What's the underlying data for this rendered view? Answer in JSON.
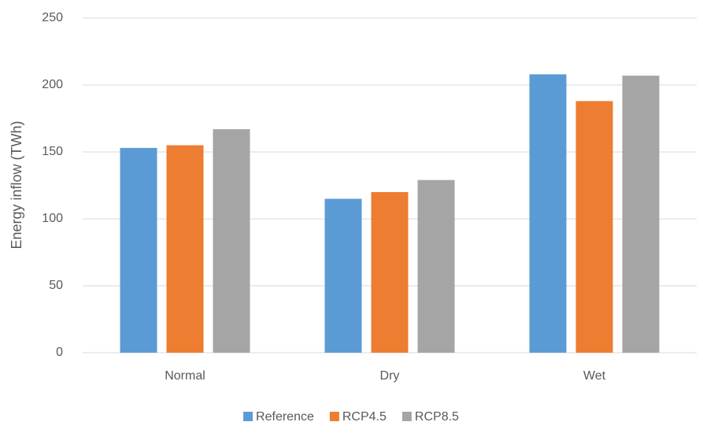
{
  "chart_data": {
    "type": "bar",
    "y_label": "Energy inflow (TWh)",
    "categories": [
      "Normal",
      "Dry",
      "Wet"
    ],
    "series": [
      {
        "name": "Reference",
        "color": "#5b9bd5",
        "values": [
          153,
          115,
          208
        ]
      },
      {
        "name": "RCP4.5",
        "color": "#ed7d31",
        "values": [
          155,
          120,
          188
        ]
      },
      {
        "name": "RCP8.5",
        "color": "#a5a5a5",
        "values": [
          167,
          129,
          207
        ]
      }
    ],
    "ylim": [
      0,
      250
    ],
    "yticks": [
      0,
      50,
      100,
      150,
      200,
      250
    ],
    "grid": true,
    "legend": "bottom"
  }
}
